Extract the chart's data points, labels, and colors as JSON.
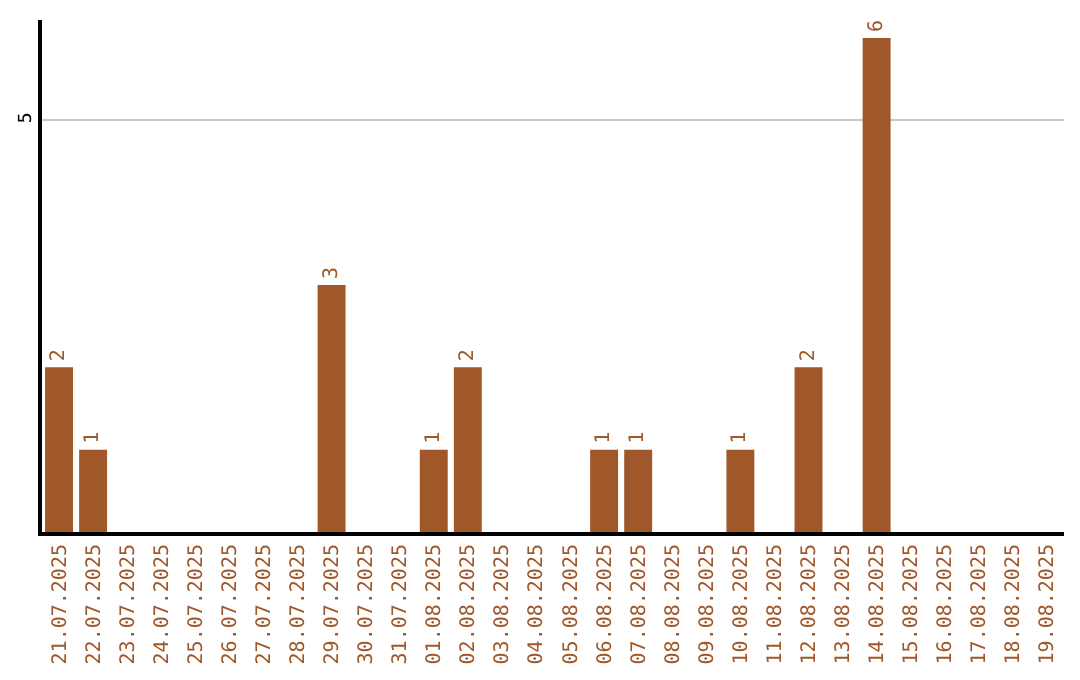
{
  "chart_data": {
    "type": "bar",
    "categories": [
      "21.07.2025",
      "22.07.2025",
      "23.07.2025",
      "24.07.2025",
      "25.07.2025",
      "26.07.2025",
      "27.07.2025",
      "28.07.2025",
      "29.07.2025",
      "30.07.2025",
      "31.07.2025",
      "01.08.2025",
      "02.08.2025",
      "03.08.2025",
      "04.08.2025",
      "05.08.2025",
      "06.08.2025",
      "07.08.2025",
      "08.08.2025",
      "09.08.2025",
      "10.08.2025",
      "11.08.2025",
      "12.08.2025",
      "13.08.2025",
      "14.08.2025",
      "15.08.2025",
      "16.08.2025",
      "17.08.2025",
      "18.08.2025",
      "19.08.2025"
    ],
    "values": [
      2,
      1,
      0,
      0,
      0,
      0,
      0,
      0,
      3,
      0,
      0,
      1,
      2,
      0,
      0,
      0,
      1,
      1,
      0,
      0,
      1,
      0,
      2,
      0,
      6,
      0,
      0,
      0,
      0,
      0
    ],
    "value_labels": [
      "2",
      "1",
      null,
      null,
      null,
      null,
      null,
      null,
      "3",
      null,
      null,
      "1",
      "2",
      null,
      null,
      null,
      "1",
      "1",
      null,
      null,
      "1",
      null,
      "2",
      null,
      "6",
      null,
      null,
      null,
      null,
      null
    ],
    "color": "#a0572a",
    "ylim": [
      0,
      6.22
    ],
    "yticks": [
      5
    ],
    "grid": "y",
    "legend": false
  }
}
